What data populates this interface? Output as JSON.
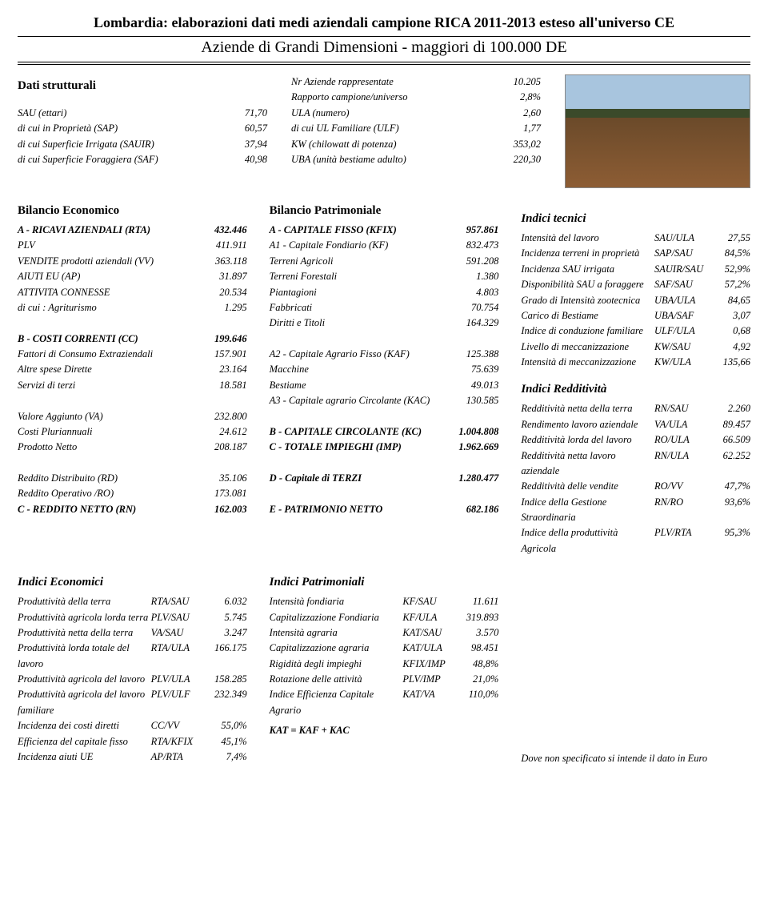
{
  "header": {
    "main_title": "Lombardia: elaborazioni dati medi aziendali campione RICA 2011-2013 esteso all'universo CE",
    "sub_title": "Aziende di Grandi Dimensioni - maggiori di 100.000 DE"
  },
  "dati_strutturali": {
    "title": "Dati strutturali",
    "left": [
      {
        "label": "SAU (ettari)",
        "value": "71,70"
      },
      {
        "label": "di cui in Proprietà (SAP)",
        "value": "60,57"
      },
      {
        "label": "di cui Superficie Irrigata (SAUIR)",
        "value": "37,94"
      },
      {
        "label": "di cui Superficie Foraggiera (SAF)",
        "value": "40,98"
      }
    ],
    "right": [
      {
        "label": "Nr Aziende rappresentate",
        "value": "10.205"
      },
      {
        "label": "Rapporto campione/universo",
        "value": "2,8%"
      },
      {
        "label": "ULA (numero)",
        "value": "2,60"
      },
      {
        "label": "di cui UL Familiare (ULF)",
        "value": "1,77"
      },
      {
        "label": "KW (chilowatt di potenza)",
        "value": "353,02"
      },
      {
        "label": "UBA (unità bestiame adulto)",
        "value": "220,30"
      }
    ]
  },
  "bilancio_economico": {
    "title": "Bilancio Economico",
    "rows": [
      {
        "label": "A - RICAVI AZIENDALI (RTA)",
        "value": "432.446",
        "bold": true
      },
      {
        "label": "PLV",
        "value": "411.911"
      },
      {
        "label": "VENDITE prodotti aziendali (VV)",
        "value": "363.118"
      },
      {
        "label": "AIUTI EU (AP)",
        "value": "31.897"
      },
      {
        "label": "ATTIVITA CONNESSE",
        "value": "20.534"
      },
      {
        "label": "di cui : Agriturismo",
        "value": "1.295"
      },
      {
        "label": "",
        "value": ""
      },
      {
        "label": "B - COSTI CORRENTI  (CC)",
        "value": "199.646",
        "bold": true
      },
      {
        "label": "Fattori di Consumo Extraziendali",
        "value": "157.901"
      },
      {
        "label": "Altre spese Dirette",
        "value": "23.164"
      },
      {
        "label": "Servizi di terzi",
        "value": "18.581"
      },
      {
        "label": "",
        "value": ""
      },
      {
        "label": "Valore Aggiunto (VA)",
        "value": "232.800"
      },
      {
        "label": "Costi Pluriannuali",
        "value": "24.612"
      },
      {
        "label": "Prodotto Netto",
        "value": "208.187"
      },
      {
        "label": "",
        "value": ""
      },
      {
        "label": "Reddito Distribuito (RD)",
        "value": "35.106"
      },
      {
        "label": "Reddito Operativo /RO)",
        "value": "173.081"
      },
      {
        "label": "C - REDDITO NETTO (RN)",
        "value": "162.003",
        "bold": true
      }
    ]
  },
  "bilancio_patrimoniale": {
    "title": "Bilancio Patrimoniale",
    "rows": [
      {
        "label": "A - CAPITALE FISSO (KFIX)",
        "value": "957.861",
        "bold": true
      },
      {
        "label": "A1 - Capitale Fondiario (KF)",
        "value": "832.473",
        "italic": true
      },
      {
        "label": "Terreni Agricoli",
        "value": "591.208"
      },
      {
        "label": "Terreni Forestali",
        "value": "1.380"
      },
      {
        "label": "Piantagioni",
        "value": "4.803"
      },
      {
        "label": "Fabbricati",
        "value": "70.754"
      },
      {
        "label": "Diritti e Titoli",
        "value": "164.329"
      },
      {
        "label": "",
        "value": ""
      },
      {
        "label": "A2 - Capitale Agrario Fisso (KAF)",
        "value": "125.388",
        "italic": true
      },
      {
        "label": "Macchine",
        "value": "75.639"
      },
      {
        "label": "Bestiame",
        "value": "49.013"
      },
      {
        "label": "A3 - Capitale agrario Circolante (KAC)",
        "value": "130.585",
        "italic": true
      },
      {
        "label": "",
        "value": ""
      },
      {
        "label": "B - CAPITALE CIRCOLANTE  (KC)",
        "value": "1.004.808",
        "bold": true
      },
      {
        "label": "C - TOTALE IMPIEGHI (IMP)",
        "value": "1.962.669",
        "bold": true
      },
      {
        "label": "",
        "value": ""
      },
      {
        "label": "D - Capitale di TERZI",
        "value": "1.280.477",
        "bold": true
      },
      {
        "label": "",
        "value": ""
      },
      {
        "label": "E - PATRIMONIO NETTO",
        "value": "682.186",
        "bold": true
      }
    ]
  },
  "indici_tecnici": {
    "title": "Indici tecnici",
    "rows": [
      {
        "label": "Intensità del lavoro",
        "ratio": "SAU/ULA",
        "value": "27,55"
      },
      {
        "label": "Incidenza terreni in proprietà",
        "ratio": "SAP/SAU",
        "value": "84,5%"
      },
      {
        "label": "Incidenza SAU irrigata",
        "ratio": "SAUIR/SAU",
        "value": "52,9%"
      },
      {
        "label": "Disponibilità SAU a foraggere",
        "ratio": "SAF/SAU",
        "value": "57,2%"
      },
      {
        "label": "Grado di Intensità zootecnica",
        "ratio": "UBA/ULA",
        "value": "84,65"
      },
      {
        "label": "Carico di Bestiame",
        "ratio": "UBA/SAF",
        "value": "3,07"
      },
      {
        "label": "Indice di conduzione familiare",
        "ratio": "ULF/ULA",
        "value": "0,68"
      },
      {
        "label": "Livello di meccanizzazione",
        "ratio": "KW/SAU",
        "value": "4,92"
      },
      {
        "label": "Intensità di meccanizzazione",
        "ratio": "KW/ULA",
        "value": "135,66"
      }
    ]
  },
  "indici_redditivita": {
    "title": "Indici Redditività",
    "rows": [
      {
        "label": "Redditività netta della terra",
        "ratio": "RN/SAU",
        "value": "2.260"
      },
      {
        "label": "Rendimento lavoro aziendale",
        "ratio": "VA/ULA",
        "value": "89.457"
      },
      {
        "label": "Redditività lorda del lavoro",
        "ratio": "RO/ULA",
        "value": "66.509"
      },
      {
        "label": "Redditività netta lavoro aziendale",
        "ratio": "RN/ULA",
        "value": "62.252"
      },
      {
        "label": "Redditività delle vendite",
        "ratio": "RO/VV",
        "value": "47,7%"
      },
      {
        "label": "Indice della Gestione Straordinaria",
        "ratio": "RN/RO",
        "value": "93,6%"
      },
      {
        "label": "Indice della produttività Agricola",
        "ratio": "PLV/RTA",
        "value": "95,3%"
      }
    ]
  },
  "indici_economici": {
    "title": "Indici Economici",
    "rows": [
      {
        "label": "Produttività della terra",
        "ratio": "RTA/SAU",
        "value": "6.032"
      },
      {
        "label": "Produttività agricola lorda terra",
        "ratio": "PLV/SAU",
        "value": "5.745"
      },
      {
        "label": "Produttività netta della terra",
        "ratio": "VA/SAU",
        "value": "3.247"
      },
      {
        "label": "Produttività lorda totale del lavoro",
        "ratio": "RTA/ULA",
        "value": "166.175"
      },
      {
        "label": "Produttività agricola del lavoro",
        "ratio": "PLV/ULA",
        "value": "158.285"
      },
      {
        "label": "Produttività agricola del lavoro familiare",
        "ratio": "PLV/ULF",
        "value": "232.349"
      },
      {
        "label": "Incidenza dei costi diretti",
        "ratio": "CC/VV",
        "value": "55,0%"
      },
      {
        "label": "Efficienza del capitale fisso",
        "ratio": "RTA/KFIX",
        "value": "45,1%"
      },
      {
        "label": "Incidenza aiuti UE",
        "ratio": "AP/RTA",
        "value": "7,4%"
      }
    ]
  },
  "indici_patrimoniali": {
    "title": "Indici Patrimoniali",
    "rows": [
      {
        "label": "Intensità fondiaria",
        "ratio": "KF/SAU",
        "value": "11.611"
      },
      {
        "label": "Capitalizzazione Fondiaria",
        "ratio": "KF/ULA",
        "value": "319.893"
      },
      {
        "label": "Intensità agraria",
        "ratio": "KAT/SAU",
        "value": "3.570"
      },
      {
        "label": "Capitalizzazione agraria",
        "ratio": "KAT/ULA",
        "value": "98.451"
      },
      {
        "label": "Rigidità degli impieghi",
        "ratio": "KFIX/IMP",
        "value": "48,8%"
      },
      {
        "label": "Rotazione delle attività",
        "ratio": "PLV/IMP",
        "value": "21,0%"
      },
      {
        "label": "Indice Efficienza Capitale Agrario",
        "ratio": "KAT/VA",
        "value": "110,0%"
      }
    ],
    "equation": "KAT = KAF + KAC"
  },
  "footnote": "Dove non specificato si intende il dato in Euro"
}
